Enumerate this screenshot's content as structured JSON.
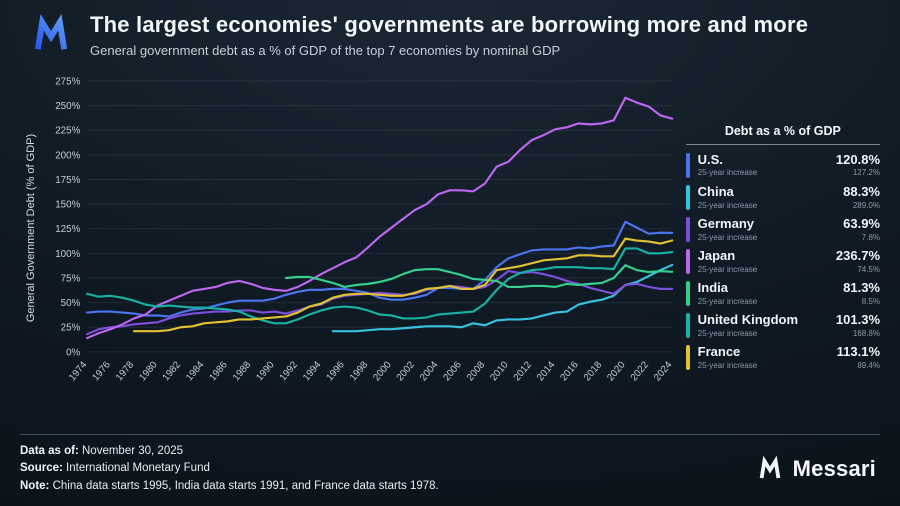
{
  "header": {
    "title": "The largest economies' governments are borrowing more and more",
    "subtitle": "General government debt as a % of GDP of the top 7 economies by nominal GDP"
  },
  "chart_data": {
    "type": "line",
    "title": "The largest economies' governments are borrowing more and more",
    "xlabel": "",
    "ylabel": "General Government Debt (% of GDP)",
    "ylim": [
      0,
      275
    ],
    "y_tick_step": 25,
    "x_range": [
      1974,
      2024
    ],
    "x_ticks": [
      1974,
      1976,
      1978,
      1980,
      1982,
      1984,
      1986,
      1988,
      1990,
      1992,
      1994,
      1996,
      1998,
      2000,
      2002,
      2004,
      2006,
      2008,
      2010,
      2012,
      2014,
      2016,
      2018,
      2020,
      2022,
      2024
    ],
    "grid": "horizontal-only",
    "legend_position": "right",
    "series": [
      {
        "name": "U.S.",
        "color": "#4a74f0",
        "start_year": 1974,
        "values": [
          40,
          41,
          41,
          40,
          39,
          37,
          37,
          36,
          40,
          43,
          44,
          47,
          50,
          52,
          52,
          52,
          54,
          58,
          61,
          63,
          63,
          64,
          64,
          62,
          60,
          55,
          53,
          53,
          55,
          58,
          65,
          65,
          64,
          64,
          73,
          86,
          95,
          99,
          103,
          104,
          104,
          104,
          106,
          105,
          107,
          108,
          132,
          126,
          120,
          121,
          120.8
        ]
      },
      {
        "name": "China",
        "color": "#38c3dd",
        "start_year": 1995,
        "values": [
          21,
          21,
          21,
          22,
          23,
          23,
          24,
          25,
          26,
          26,
          26,
          25,
          29,
          27,
          32,
          33,
          33,
          34,
          37,
          40,
          41,
          48,
          51,
          53,
          57,
          68,
          71,
          77,
          83,
          88.3
        ]
      },
      {
        "name": "Germany",
        "color": "#7c4fdd",
        "start_year": 1974,
        "values": [
          18,
          23,
          25,
          26,
          28,
          29,
          30,
          34,
          37,
          39,
          40,
          41,
          41,
          42,
          42,
          40,
          41,
          39,
          42,
          46,
          48,
          54,
          57,
          58,
          59,
          60,
          59,
          58,
          59,
          63,
          65,
          67,
          66,
          64,
          66,
          73,
          82,
          80,
          81,
          79,
          76,
          72,
          69,
          65,
          62,
          59,
          68,
          69,
          66,
          64,
          63.9
        ]
      },
      {
        "name": "Japan",
        "color": "#bb67f0",
        "start_year": 1974,
        "values": [
          14,
          19,
          23,
          28,
          34,
          38,
          47,
          52,
          57,
          62,
          64,
          66,
          70,
          72,
          69,
          65,
          63,
          62,
          66,
          72,
          79,
          85,
          91,
          96,
          106,
          117,
          126,
          135,
          144,
          150,
          160,
          164,
          164,
          163,
          171,
          188,
          193,
          205,
          215,
          220,
          226,
          228,
          232,
          231,
          232,
          235,
          258,
          253,
          249,
          240,
          236.7
        ]
      },
      {
        "name": "India",
        "color": "#35d08e",
        "start_year": 1991,
        "values": [
          75,
          76,
          76,
          73,
          70,
          66,
          68,
          69,
          71,
          74,
          79,
          83,
          84,
          84,
          81,
          78,
          74,
          73,
          72,
          66,
          66,
          67,
          67,
          66,
          69,
          68,
          69,
          70,
          75,
          88,
          83,
          81,
          82,
          81.3
        ]
      },
      {
        "name": "United Kingdom",
        "color": "#17b2a2",
        "start_year": 1974,
        "values": [
          59,
          56,
          57,
          55,
          52,
          48,
          46,
          47,
          46,
          45,
          45,
          44,
          43,
          41,
          36,
          32,
          29,
          29,
          33,
          38,
          42,
          45,
          46,
          45,
          42,
          38,
          37,
          34,
          34,
          35,
          38,
          39,
          40,
          41,
          49,
          63,
          74,
          80,
          83,
          84,
          86,
          86,
          86,
          85,
          85,
          84,
          105,
          105,
          100,
          100,
          101.3
        ]
      },
      {
        "name": "France",
        "color": "#e2c231",
        "start_year": 1978,
        "values": [
          21,
          21,
          21,
          22,
          25,
          26,
          29,
          30,
          31,
          33,
          33,
          34,
          35,
          36,
          40,
          46,
          49,
          55,
          58,
          59,
          59,
          58,
          57,
          57,
          60,
          64,
          65,
          67,
          64,
          64,
          68,
          83,
          85,
          87,
          90,
          93,
          94,
          95,
          98,
          98,
          97,
          97,
          115,
          113,
          112,
          110,
          113.1
        ]
      }
    ]
  },
  "legend": {
    "title": "Debt as a % of GDP",
    "sub_label": "25-year increase",
    "items": [
      {
        "name": "U.S.",
        "value": "120.8%",
        "increase": "127.2%",
        "color": "#4a74f0"
      },
      {
        "name": "China",
        "value": "88.3%",
        "increase": "289.0%",
        "color": "#38c3dd"
      },
      {
        "name": "Germany",
        "value": "63.9%",
        "increase": "7.8%",
        "color": "#7c4fdd"
      },
      {
        "name": "Japan",
        "value": "236.7%",
        "increase": "74.5%",
        "color": "#bb67f0"
      },
      {
        "name": "India",
        "value": "81.3%",
        "increase": "8.5%",
        "color": "#35d08e"
      },
      {
        "name": "United Kingdom",
        "value": "101.3%",
        "increase": "168.8%",
        "color": "#17b2a2"
      },
      {
        "name": "France",
        "value": "113.1%",
        "increase": "89.4%",
        "color": "#e2c231"
      }
    ]
  },
  "footer": {
    "data_as_of_label": "Data as of:",
    "data_as_of_value": "November 30, 2025",
    "source_label": "Source:",
    "source_value": "International Monetary Fund",
    "note_label": "Note:",
    "note_value": "China data starts 1995, India data starts 1991, and France data starts 1978.",
    "brand": "Messari"
  },
  "colors": {
    "background": "#101a24",
    "grid": "rgba(148,170,197,0.12)",
    "tick_text": "#c3cdd8",
    "logo_blue": "#3b6ef5"
  }
}
